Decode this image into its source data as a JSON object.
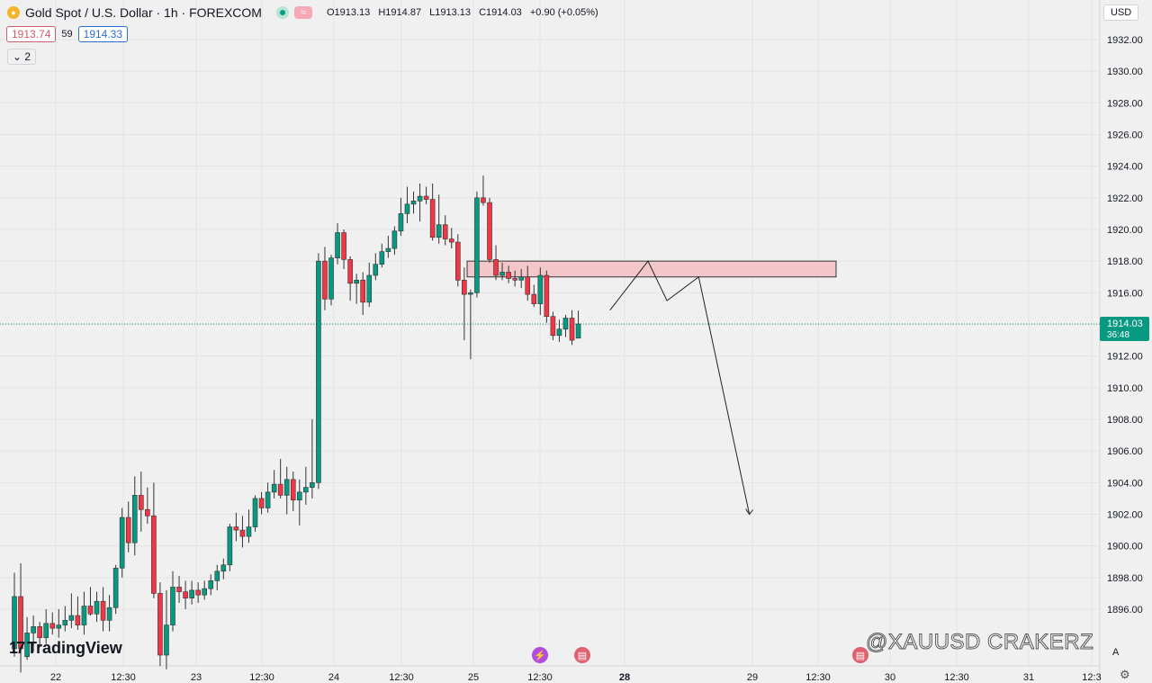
{
  "header": {
    "title": "Gold Spot / U.S. Dollar · 1h · FOREXCOM",
    "open": "O1913.13",
    "high": "H1914.87",
    "low": "L1913.13",
    "close": "C1914.03",
    "change": "+0.90 (+0.05%)",
    "sell_price": "1913.74",
    "spread": "59",
    "buy_price": "1914.33",
    "indicators_count": "2",
    "currency": "USD"
  },
  "watermark": "@XAUUSD CRAKERZ",
  "brand": "TradingView",
  "colors": {
    "up": "#089981",
    "down": "#f23645",
    "zone_fill": "#f3c6c9",
    "last_price_bg": "#089981",
    "grid": "#e3e3e3"
  },
  "chart_data": {
    "type": "candlestick",
    "symbol": "XAUUSD",
    "timeframe": "1h",
    "y_axis": {
      "min": 1894.5,
      "max": 1933.0,
      "ticks": [
        "1932.00",
        "1930.00",
        "1928.00",
        "1926.00",
        "1924.00",
        "1922.00",
        "1920.00",
        "1918.00",
        "1916.00",
        "1914.00",
        "1912.00",
        "1910.00",
        "1908.00",
        "1906.00",
        "1904.00",
        "1902.00",
        "1900.00",
        "1898.00",
        "1896.00"
      ],
      "side": "right"
    },
    "x_axis": {
      "labels": [
        "22",
        "12:30",
        "23",
        "12:30",
        "24",
        "12:30",
        "25",
        "12:30",
        "28",
        "29",
        "12:30",
        "30",
        "12:30",
        "31",
        "12:3"
      ]
    },
    "last_price": {
      "value": "1914.03",
      "countdown": "36:48"
    },
    "candles": [
      {
        "o": 1893.5,
        "h": 1898.3,
        "l": 1893.0,
        "c": 1896.8
      },
      {
        "o": 1896.8,
        "h": 1898.9,
        "l": 1892.0,
        "c": 1893.5
      },
      {
        "o": 1893.0,
        "h": 1895.5,
        "l": 1892.8,
        "c": 1894.5
      },
      {
        "o": 1894.5,
        "h": 1895.6,
        "l": 1893.3,
        "c": 1894.9
      },
      {
        "o": 1894.9,
        "h": 1895.2,
        "l": 1893.6,
        "c": 1894.2
      },
      {
        "o": 1894.2,
        "h": 1896.0,
        "l": 1893.8,
        "c": 1895.1
      },
      {
        "o": 1895.1,
        "h": 1895.8,
        "l": 1894.4,
        "c": 1894.8
      },
      {
        "o": 1894.8,
        "h": 1896.0,
        "l": 1894.2,
        "c": 1895.0
      },
      {
        "o": 1895.0,
        "h": 1896.2,
        "l": 1894.6,
        "c": 1895.3
      },
      {
        "o": 1895.3,
        "h": 1897.0,
        "l": 1894.8,
        "c": 1895.6
      },
      {
        "o": 1895.6,
        "h": 1896.8,
        "l": 1894.7,
        "c": 1895.0
      },
      {
        "o": 1895.0,
        "h": 1897.1,
        "l": 1894.4,
        "c": 1896.2
      },
      {
        "o": 1896.2,
        "h": 1897.4,
        "l": 1895.6,
        "c": 1895.7
      },
      {
        "o": 1895.7,
        "h": 1897.1,
        "l": 1895.2,
        "c": 1896.5
      },
      {
        "o": 1896.5,
        "h": 1897.4,
        "l": 1894.6,
        "c": 1895.3
      },
      {
        "o": 1895.3,
        "h": 1896.9,
        "l": 1894.6,
        "c": 1896.1
      },
      {
        "o": 1896.1,
        "h": 1898.8,
        "l": 1895.7,
        "c": 1898.6
      },
      {
        "o": 1898.6,
        "h": 1902.4,
        "l": 1898.0,
        "c": 1901.8
      },
      {
        "o": 1901.8,
        "h": 1902.8,
        "l": 1899.6,
        "c": 1900.2
      },
      {
        "o": 1900.2,
        "h": 1904.4,
        "l": 1899.4,
        "c": 1903.2
      },
      {
        "o": 1903.2,
        "h": 1904.7,
        "l": 1900.9,
        "c": 1902.3
      },
      {
        "o": 1902.3,
        "h": 1903.7,
        "l": 1901.4,
        "c": 1901.9
      },
      {
        "o": 1901.9,
        "h": 1904.0,
        "l": 1896.7,
        "c": 1897.0
      },
      {
        "o": 1897.0,
        "h": 1897.7,
        "l": 1892.4,
        "c": 1893.1
      },
      {
        "o": 1893.1,
        "h": 1897.2,
        "l": 1892.2,
        "c": 1895.0
      },
      {
        "o": 1895.0,
        "h": 1898.4,
        "l": 1894.6,
        "c": 1897.4
      },
      {
        "o": 1897.4,
        "h": 1898.1,
        "l": 1896.4,
        "c": 1897.1
      },
      {
        "o": 1897.1,
        "h": 1897.8,
        "l": 1896.0,
        "c": 1896.7
      },
      {
        "o": 1896.7,
        "h": 1897.8,
        "l": 1896.3,
        "c": 1897.2
      },
      {
        "o": 1897.2,
        "h": 1897.7,
        "l": 1896.4,
        "c": 1896.9
      },
      {
        "o": 1896.9,
        "h": 1897.8,
        "l": 1896.6,
        "c": 1897.3
      },
      {
        "o": 1897.3,
        "h": 1898.2,
        "l": 1896.9,
        "c": 1897.8
      },
      {
        "o": 1897.8,
        "h": 1898.8,
        "l": 1897.2,
        "c": 1898.4
      },
      {
        "o": 1898.4,
        "h": 1899.2,
        "l": 1897.9,
        "c": 1898.8
      },
      {
        "o": 1898.8,
        "h": 1901.4,
        "l": 1898.4,
        "c": 1901.2
      },
      {
        "o": 1901.2,
        "h": 1902.1,
        "l": 1900.3,
        "c": 1901.0
      },
      {
        "o": 1901.0,
        "h": 1901.9,
        "l": 1899.9,
        "c": 1900.6
      },
      {
        "o": 1900.6,
        "h": 1902.3,
        "l": 1900.2,
        "c": 1901.2
      },
      {
        "o": 1901.2,
        "h": 1903.2,
        "l": 1900.9,
        "c": 1903.0
      },
      {
        "o": 1903.0,
        "h": 1903.4,
        "l": 1902.0,
        "c": 1902.4
      },
      {
        "o": 1902.4,
        "h": 1904.0,
        "l": 1902.1,
        "c": 1903.4
      },
      {
        "o": 1903.4,
        "h": 1904.8,
        "l": 1903.0,
        "c": 1903.9
      },
      {
        "o": 1903.9,
        "h": 1905.5,
        "l": 1903.0,
        "c": 1903.2
      },
      {
        "o": 1903.2,
        "h": 1905.0,
        "l": 1902.0,
        "c": 1904.2
      },
      {
        "o": 1904.2,
        "h": 1904.7,
        "l": 1902.2,
        "c": 1902.9
      },
      {
        "o": 1902.9,
        "h": 1904.2,
        "l": 1901.3,
        "c": 1903.4
      },
      {
        "o": 1903.4,
        "h": 1905.0,
        "l": 1902.6,
        "c": 1903.7
      },
      {
        "o": 1903.7,
        "h": 1908.0,
        "l": 1903.0,
        "c": 1904.0
      },
      {
        "o": 1904.0,
        "h": 1918.5,
        "l": 1903.6,
        "c": 1918.0
      },
      {
        "o": 1918.0,
        "h": 1918.9,
        "l": 1914.9,
        "c": 1915.6
      },
      {
        "o": 1915.6,
        "h": 1918.4,
        "l": 1915.2,
        "c": 1918.2
      },
      {
        "o": 1918.2,
        "h": 1920.4,
        "l": 1917.8,
        "c": 1919.8
      },
      {
        "o": 1919.8,
        "h": 1920.0,
        "l": 1917.5,
        "c": 1918.1
      },
      {
        "o": 1918.1,
        "h": 1918.3,
        "l": 1915.5,
        "c": 1916.6
      },
      {
        "o": 1916.6,
        "h": 1917.2,
        "l": 1915.3,
        "c": 1916.8
      },
      {
        "o": 1916.8,
        "h": 1917.3,
        "l": 1914.6,
        "c": 1915.4
      },
      {
        "o": 1915.4,
        "h": 1917.9,
        "l": 1915.1,
        "c": 1917.1
      },
      {
        "o": 1917.1,
        "h": 1918.5,
        "l": 1916.8,
        "c": 1917.8
      },
      {
        "o": 1917.8,
        "h": 1919.1,
        "l": 1917.6,
        "c": 1918.6
      },
      {
        "o": 1918.6,
        "h": 1919.6,
        "l": 1918.2,
        "c": 1918.8
      },
      {
        "o": 1918.8,
        "h": 1920.2,
        "l": 1918.4,
        "c": 1919.9
      },
      {
        "o": 1919.9,
        "h": 1922.0,
        "l": 1919.6,
        "c": 1921.0
      },
      {
        "o": 1921.0,
        "h": 1922.7,
        "l": 1920.4,
        "c": 1921.6
      },
      {
        "o": 1921.6,
        "h": 1922.4,
        "l": 1921.0,
        "c": 1921.8
      },
      {
        "o": 1921.8,
        "h": 1922.9,
        "l": 1920.5,
        "c": 1922.1
      },
      {
        "o": 1922.1,
        "h": 1922.7,
        "l": 1921.6,
        "c": 1921.9
      },
      {
        "o": 1921.9,
        "h": 1922.9,
        "l": 1919.3,
        "c": 1919.5
      },
      {
        "o": 1919.5,
        "h": 1922.2,
        "l": 1919.1,
        "c": 1920.3
      },
      {
        "o": 1920.3,
        "h": 1920.9,
        "l": 1919.0,
        "c": 1919.4
      },
      {
        "o": 1919.4,
        "h": 1920.1,
        "l": 1918.8,
        "c": 1919.2
      },
      {
        "o": 1919.2,
        "h": 1919.7,
        "l": 1916.4,
        "c": 1916.8
      },
      {
        "o": 1916.8,
        "h": 1917.6,
        "l": 1913.0,
        "c": 1915.9
      },
      {
        "o": 1915.9,
        "h": 1916.2,
        "l": 1911.8,
        "c": 1916.0
      },
      {
        "o": 1916.0,
        "h": 1922.4,
        "l": 1915.7,
        "c": 1922.0
      },
      {
        "o": 1922.0,
        "h": 1923.4,
        "l": 1921.5,
        "c": 1921.7
      },
      {
        "o": 1921.7,
        "h": 1922.0,
        "l": 1917.9,
        "c": 1918.1
      },
      {
        "o": 1918.1,
        "h": 1919.0,
        "l": 1916.8,
        "c": 1917.1
      },
      {
        "o": 1917.1,
        "h": 1917.9,
        "l": 1916.8,
        "c": 1917.3
      },
      {
        "o": 1917.3,
        "h": 1917.7,
        "l": 1916.6,
        "c": 1916.9
      },
      {
        "o": 1916.9,
        "h": 1917.4,
        "l": 1916.4,
        "c": 1916.8
      },
      {
        "o": 1916.8,
        "h": 1917.5,
        "l": 1916.3,
        "c": 1917.0
      },
      {
        "o": 1917.0,
        "h": 1917.7,
        "l": 1915.5,
        "c": 1915.9
      },
      {
        "o": 1915.9,
        "h": 1916.5,
        "l": 1915.1,
        "c": 1915.3
      },
      {
        "o": 1915.3,
        "h": 1917.6,
        "l": 1914.6,
        "c": 1917.1
      },
      {
        "o": 1917.1,
        "h": 1917.4,
        "l": 1914.1,
        "c": 1914.5
      },
      {
        "o": 1914.5,
        "h": 1914.8,
        "l": 1913.0,
        "c": 1913.3
      },
      {
        "o": 1913.3,
        "h": 1914.3,
        "l": 1912.9,
        "c": 1913.7
      },
      {
        "o": 1913.7,
        "h": 1914.6,
        "l": 1913.2,
        "c": 1914.4
      },
      {
        "o": 1914.4,
        "h": 1914.9,
        "l": 1912.7,
        "c": 1913.0
      },
      {
        "o": 1913.13,
        "h": 1914.87,
        "l": 1913.13,
        "c": 1914.03
      }
    ],
    "supply_zone": {
      "top": 1918.0,
      "bottom": 1917.0
    },
    "projection_path": [
      {
        "t": 5,
        "p": 1914.9
      },
      {
        "t": 11,
        "p": 1918.0
      },
      {
        "t": 14,
        "p": 1915.5
      },
      {
        "t": 19,
        "p": 1917.0
      },
      {
        "t": 27,
        "p": 1902.0
      }
    ]
  }
}
